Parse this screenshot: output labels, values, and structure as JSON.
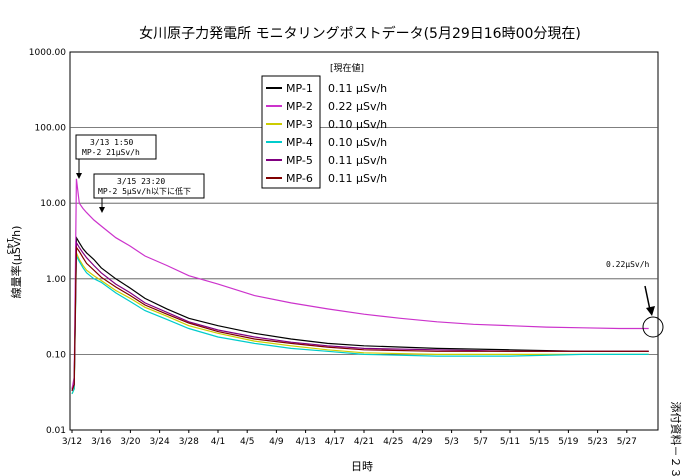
{
  "chart_data": {
    "type": "line",
    "title": "女川原子力発電所 モニタリングポストデータ(5月29日16時00分現在)",
    "xlabel": "日時",
    "ylabel": "線量率(μSv/h)",
    "y_scale": "log",
    "ylim": [
      0.01,
      1000
    ],
    "y_ticks": [
      "1000.00",
      "100.00",
      "10.00",
      "1.00",
      "0.10",
      "0.01"
    ],
    "x_tick_labels": [
      "3/12",
      "3/16",
      "3/20",
      "3/24",
      "3/28",
      "4/1",
      "4/5",
      "4/9",
      "4/13",
      "4/17",
      "4/21",
      "4/25",
      "4/29",
      "5/3",
      "5/7",
      "5/11",
      "5/15",
      "5/19",
      "5/23",
      "5/27"
    ],
    "x_day_range": [
      0,
      79
    ],
    "legend_header": "[現在値]",
    "grid": true,
    "series": [
      {
        "name": "MP-1",
        "color": "#000000",
        "current": "0.11 μSv/h",
        "x": [
          0,
          0.3,
          0.6,
          1.0,
          1.5,
          2,
          3,
          4,
          6,
          8,
          10,
          13,
          16,
          20,
          25,
          30,
          35,
          40,
          50,
          60,
          70,
          79
        ],
        "y": [
          0.035,
          0.04,
          3.5,
          3.0,
          2.5,
          2.2,
          1.8,
          1.4,
          1.0,
          0.75,
          0.55,
          0.4,
          0.3,
          0.24,
          0.19,
          0.16,
          0.14,
          0.13,
          0.12,
          0.115,
          0.11,
          0.11
        ]
      },
      {
        "name": "MP-2",
        "color": "#cc33cc",
        "current": "0.22 μSv/h",
        "x": [
          0,
          0.3,
          0.6,
          1.0,
          1.5,
          2,
          3,
          4,
          6,
          8,
          10,
          13,
          16,
          20,
          25,
          30,
          35,
          40,
          45,
          50,
          55,
          60,
          65,
          70,
          75,
          79
        ],
        "y": [
          0.035,
          0.05,
          21,
          10,
          8.5,
          7.5,
          6.0,
          5.0,
          3.5,
          2.7,
          2.0,
          1.5,
          1.1,
          0.85,
          0.6,
          0.48,
          0.4,
          0.34,
          0.3,
          0.27,
          0.25,
          0.24,
          0.23,
          0.225,
          0.22,
          0.22
        ]
      },
      {
        "name": "MP-3",
        "color": "#cccc00",
        "current": "0.10 μSv/h",
        "x": [
          0,
          0.3,
          0.6,
          1.0,
          1.5,
          2,
          3,
          4,
          6,
          8,
          10,
          13,
          16,
          20,
          25,
          30,
          35,
          40,
          50,
          60,
          70,
          79
        ],
        "y": [
          0.03,
          0.035,
          2.2,
          1.8,
          1.5,
          1.3,
          1.1,
          0.95,
          0.7,
          0.55,
          0.42,
          0.32,
          0.24,
          0.19,
          0.15,
          0.13,
          0.115,
          0.105,
          0.1,
          0.1,
          0.1,
          0.1
        ]
      },
      {
        "name": "MP-4",
        "color": "#00cccc",
        "current": "0.10 μSv/h",
        "x": [
          0,
          0.3,
          0.6,
          1.0,
          1.5,
          2,
          3,
          4,
          6,
          8,
          10,
          13,
          16,
          20,
          25,
          30,
          35,
          40,
          50,
          60,
          70,
          79
        ],
        "y": [
          0.03,
          0.035,
          2.0,
          1.7,
          1.4,
          1.2,
          1.0,
          0.9,
          0.65,
          0.5,
          0.38,
          0.29,
          0.22,
          0.17,
          0.14,
          0.12,
          0.11,
          0.1,
          0.095,
          0.095,
          0.1,
          0.1
        ]
      },
      {
        "name": "MP-5",
        "color": "#800080",
        "current": "0.11 μSv/h",
        "x": [
          0,
          0.3,
          0.6,
          1.0,
          1.5,
          2,
          3,
          4,
          6,
          8,
          10,
          13,
          16,
          20,
          25,
          30,
          35,
          40,
          50,
          60,
          70,
          79
        ],
        "y": [
          0.033,
          0.04,
          3.0,
          2.6,
          2.2,
          1.9,
          1.5,
          1.2,
          0.85,
          0.65,
          0.48,
          0.36,
          0.27,
          0.21,
          0.17,
          0.145,
          0.13,
          0.12,
          0.115,
          0.11,
          0.11,
          0.11
        ]
      },
      {
        "name": "MP-6",
        "color": "#800000",
        "current": "0.11 μSv/h",
        "x": [
          0,
          0.3,
          0.6,
          1.0,
          1.5,
          2,
          3,
          4,
          6,
          8,
          10,
          13,
          16,
          20,
          25,
          30,
          35,
          40,
          50,
          60,
          70,
          79
        ],
        "y": [
          0.033,
          0.04,
          2.6,
          2.3,
          1.9,
          1.6,
          1.3,
          1.05,
          0.78,
          0.6,
          0.45,
          0.34,
          0.26,
          0.2,
          0.16,
          0.14,
          0.125,
          0.115,
          0.11,
          0.11,
          0.11,
          0.11
        ]
      }
    ],
    "annotations": [
      {
        "line1": "3/13  1:50",
        "line2": "MP-2 21μSv/h"
      },
      {
        "line1": "3/15 23:20",
        "line2": "MP-2 5μSv/h以下に低下"
      },
      {
        "line1": "0.22μSv/h"
      }
    ],
    "side_labels": {
      "left": "143",
      "right": "添付資料－２３"
    }
  }
}
